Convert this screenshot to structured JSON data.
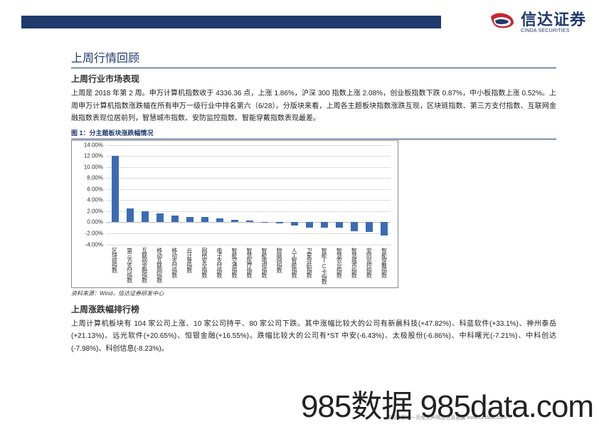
{
  "header": {
    "bar_color": "#1f3a6b",
    "logo_text": "信达证券",
    "logo_sub": "CINDA SECURITIES",
    "logo_colors": {
      "red": "#c9252c",
      "blue": "#1f3a6b"
    }
  },
  "title_main": "上周行情回顾",
  "section1": {
    "heading": "上周行业市场表现",
    "paragraph": "上周是 2018 年第 2 周。申万计算机指数收于 4336.36 点，上涨 1.86%，沪深 300 指数上涨 2.08%，创业板指数下跌 0.87%，中小板指数上涨 0.52%。上周申万计算机指数涨跌幅在所有申万一级行业中排名第六（6/28）。分版块来看，上周各主题板块指数涨跌互现，区块链指数、第三方支付指数、互联网金融指数表现位居前列，智慧城市指数、安防监控指数、智能穿戴指数表现最差。"
  },
  "figure": {
    "caption": "图 1：分主题板块涨跌幅情况",
    "source": "资料来源：Wind，信达证券研发中心",
    "chart": {
      "type": "bar",
      "ylim": [
        -4,
        14
      ],
      "ytick_step": 2,
      "tick_fontsize": 8,
      "grid_color": "#dddddd",
      "background_color": "#ffffff",
      "bar_color": "#3b6cb3",
      "categories": [
        "区块链指数",
        "第三方支付指数",
        "互联网金融指数",
        "移动互联网指数",
        "移动支付指数",
        "云计算指数",
        "网络安全指数",
        "电子支付指数",
        "智能交通指数",
        "智慧医疗指数",
        "智能电视指数",
        "物联网指数",
        "人工智能指数",
        "卫星导航指数",
        "智能IC卡指数",
        "智慧农业指数",
        "智慧城市指数",
        "安防监控指数",
        "智能穿戴指数"
      ],
      "values": [
        12.0,
        2.5,
        2.0,
        1.6,
        1.2,
        1.0,
        0.9,
        0.7,
        0.5,
        0.3,
        0.1,
        -0.2,
        -0.6,
        -1.0,
        -1.0,
        -1.0,
        -1.6,
        -1.8,
        -2.4
      ]
    }
  },
  "section2": {
    "heading": "上周涨跌幅排行榜",
    "paragraph": "上周计算机板块有 104 家公司上涨、10 家公司持平、80 家公司下跌。其中涨幅比较大的公司有新晨科技(+47.82%)、科蓝软件(+33.1%)、神州泰岳(+21.13%)、远光软件(+20.65%)、恒银金融(+16.55%)。跌幅比较大的公司有*ST 中安(-6.43%)、太极股份(-6.86%)、中科曙光(-7.21%)、中科创达(-7.98%)、科创信息(-8.23%)。"
  },
  "footer": {
    "tiny": "请阅读最后一页免责声明及信息披露 www.cindasc.com",
    "watermark": "985数据 985data.com"
  }
}
